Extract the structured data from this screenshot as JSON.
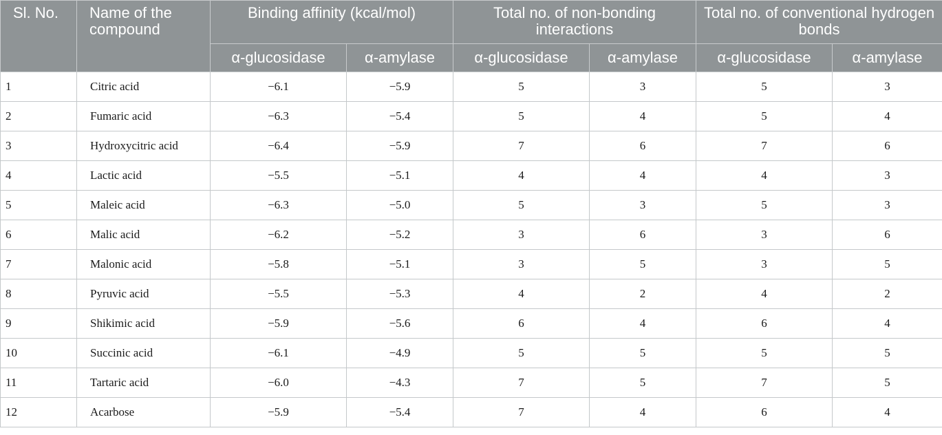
{
  "headers": {
    "sl_no": "Sl. No.",
    "compound": "Name of the compound",
    "binding_affinity": "Binding affinity (kcal/mol)",
    "non_bonding": "Total no. of non-bonding interactions",
    "hydrogen_bonds": "Total no. of conventional hydrogen bonds",
    "sub": {
      "glucosidase": "α-glucosidase",
      "amylase": "α-amylase"
    }
  },
  "rows": [
    {
      "sl": "1",
      "name": "Citric acid",
      "ba_glu": "−6.1",
      "ba_amy": "−5.9",
      "nb_glu": "5",
      "nb_amy": "3",
      "hb_glu": "5",
      "hb_amy": "3"
    },
    {
      "sl": "2",
      "name": "Fumaric acid",
      "ba_glu": "−6.3",
      "ba_amy": "−5.4",
      "nb_glu": "5",
      "nb_amy": "4",
      "hb_glu": "5",
      "hb_amy": "4"
    },
    {
      "sl": "3",
      "name": "Hydroxycitric acid",
      "ba_glu": "−6.4",
      "ba_amy": "−5.9",
      "nb_glu": "7",
      "nb_amy": "6",
      "hb_glu": "7",
      "hb_amy": "6"
    },
    {
      "sl": "4",
      "name": "Lactic acid",
      "ba_glu": "−5.5",
      "ba_amy": "−5.1",
      "nb_glu": "4",
      "nb_amy": "4",
      "hb_glu": "4",
      "hb_amy": "3"
    },
    {
      "sl": "5",
      "name": "Maleic acid",
      "ba_glu": "−6.3",
      "ba_amy": "−5.0",
      "nb_glu": "5",
      "nb_amy": "3",
      "hb_glu": "5",
      "hb_amy": "3"
    },
    {
      "sl": "6",
      "name": "Malic acid",
      "ba_glu": "−6.2",
      "ba_amy": "−5.2",
      "nb_glu": "3",
      "nb_amy": "6",
      "hb_glu": "3",
      "hb_amy": "6"
    },
    {
      "sl": "7",
      "name": "Malonic acid",
      "ba_glu": "−5.8",
      "ba_amy": "−5.1",
      "nb_glu": "3",
      "nb_amy": "5",
      "hb_glu": "3",
      "hb_amy": "5"
    },
    {
      "sl": "8",
      "name": "Pyruvic acid",
      "ba_glu": "−5.5",
      "ba_amy": "−5.3",
      "nb_glu": "4",
      "nb_amy": "2",
      "hb_glu": "4",
      "hb_amy": "2"
    },
    {
      "sl": "9",
      "name": "Shikimic acid",
      "ba_glu": "−5.9",
      "ba_amy": "−5.6",
      "nb_glu": "6",
      "nb_amy": "4",
      "hb_glu": "6",
      "hb_amy": "4"
    },
    {
      "sl": "10",
      "name": "Succinic acid",
      "ba_glu": "−6.1",
      "ba_amy": "−4.9",
      "nb_glu": "5",
      "nb_amy": "5",
      "hb_glu": "5",
      "hb_amy": "5"
    },
    {
      "sl": "11",
      "name": "Tartaric acid",
      "ba_glu": "−6.0",
      "ba_amy": "−4.3",
      "nb_glu": "7",
      "nb_amy": "5",
      "hb_glu": "7",
      "hb_amy": "5"
    },
    {
      "sl": "12",
      "name": "Acarbose",
      "ba_glu": "−5.9",
      "ba_amy": "−5.4",
      "nb_glu": "7",
      "nb_amy": "4",
      "hb_glu": "6",
      "hb_amy": "4"
    }
  ]
}
